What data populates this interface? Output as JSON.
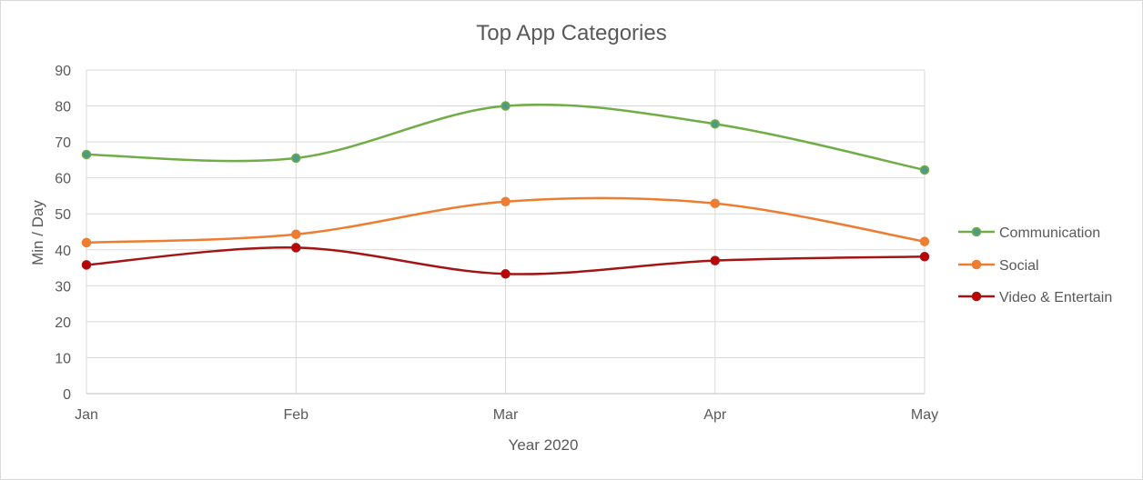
{
  "chart_data": {
    "type": "line",
    "title": "Top App Categories",
    "xlabel": "Year 2020",
    "ylabel": "Min / Day",
    "categories": [
      "Jan",
      "Feb",
      "Mar",
      "Apr",
      "May"
    ],
    "ylim": [
      0,
      90
    ],
    "yticks": [
      "0",
      "10",
      "20",
      "30",
      "40",
      "50",
      "60",
      "70",
      "80",
      "90"
    ],
    "grid": true,
    "smooth": true,
    "legend_position": "right",
    "series": [
      {
        "name": "Communication",
        "values": [
          66.5,
          65.5,
          80,
          75,
          62.2
        ],
        "color": "#70ad47",
        "marker_fill": "#4e9a85"
      },
      {
        "name": "Social",
        "values": [
          42,
          44.3,
          53.4,
          52.9,
          42.3
        ],
        "color": "#ed7d31",
        "marker_fill": "#ed7d31"
      },
      {
        "name": "Video & Entertain",
        "values": [
          35.8,
          40.6,
          33.3,
          37,
          38.1
        ],
        "color": "#a31515",
        "marker_fill": "#c00000"
      }
    ]
  }
}
